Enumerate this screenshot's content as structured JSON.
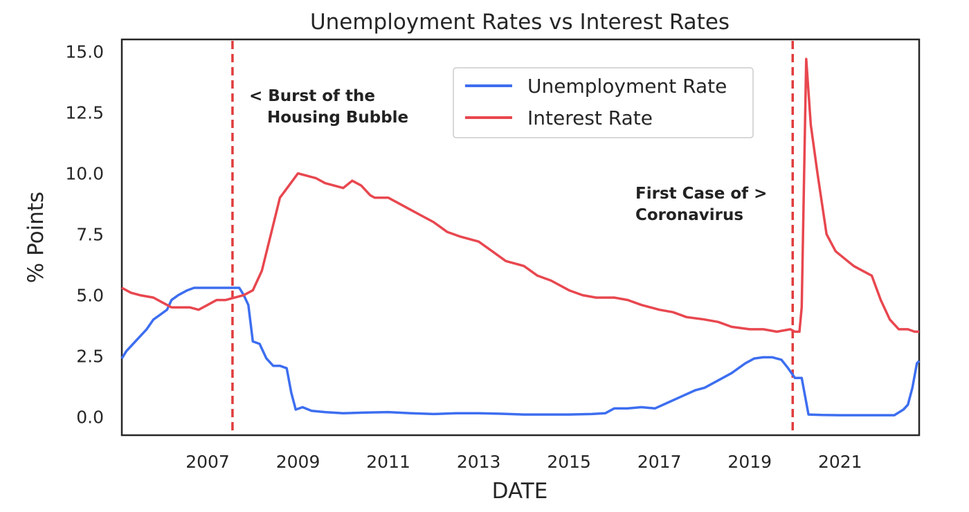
{
  "chart_data": {
    "type": "line",
    "title": "Unemployment Rates vs Interest Rates",
    "xlabel": "DATE",
    "ylabel": "% Points",
    "xlim": [
      2005.1,
      2022.75
    ],
    "ylim": [
      -0.75,
      15.5
    ],
    "xticks": [
      "2007",
      "2009",
      "2011",
      "2013",
      "2015",
      "2017",
      "2019",
      "2021"
    ],
    "yticks": [
      "0.0",
      "2.5",
      "5.0",
      "7.5",
      "10.0",
      "12.5",
      "15.0"
    ],
    "grid": false,
    "legend_position": "top-right",
    "colors": {
      "unemployment": "#3d6ef0",
      "interest": "#e8474f",
      "vline": "#e03c3c"
    },
    "series": [
      {
        "name": "Unemployment Rate",
        "x": [
          2005.1,
          2005.2,
          2005.35,
          2005.5,
          2005.65,
          2005.8,
          2005.95,
          2006.1,
          2006.2,
          2006.35,
          2006.45,
          2006.55,
          2006.7,
          2006.85,
          2007.0,
          2007.2,
          2007.4,
          2007.55,
          2007.7,
          2007.8,
          2007.9,
          2008.0,
          2008.15,
          2008.3,
          2008.45,
          2008.6,
          2008.75,
          2008.85,
          2008.95,
          2009.1,
          2009.3,
          2009.6,
          2010.0,
          2010.5,
          2011.0,
          2011.5,
          2012.0,
          2012.5,
          2013.0,
          2013.5,
          2014.0,
          2014.5,
          2015.0,
          2015.5,
          2015.8,
          2016.0,
          2016.3,
          2016.6,
          2016.9,
          2017.2,
          2017.5,
          2017.8,
          2018.0,
          2018.3,
          2018.6,
          2018.9,
          2019.1,
          2019.3,
          2019.5,
          2019.7,
          2019.85,
          2020.0,
          2020.1,
          2020.15,
          2020.3,
          2020.6,
          2021.0,
          2021.5,
          2022.0,
          2022.2,
          2022.4,
          2022.5,
          2022.6,
          2022.7,
          2022.75
        ],
        "values": [
          2.4,
          2.7,
          3.0,
          3.3,
          3.6,
          4.0,
          4.2,
          4.4,
          4.8,
          5.0,
          5.1,
          5.2,
          5.3,
          5.3,
          5.3,
          5.3,
          5.3,
          5.3,
          5.3,
          5.0,
          4.6,
          3.1,
          3.0,
          2.4,
          2.1,
          2.1,
          2.0,
          1.0,
          0.3,
          0.4,
          0.25,
          0.2,
          0.15,
          0.18,
          0.2,
          0.15,
          0.12,
          0.15,
          0.15,
          0.13,
          0.1,
          0.1,
          0.1,
          0.12,
          0.15,
          0.35,
          0.35,
          0.4,
          0.35,
          0.6,
          0.85,
          1.1,
          1.2,
          1.5,
          1.8,
          2.2,
          2.4,
          2.45,
          2.45,
          2.35,
          2.0,
          1.6,
          1.6,
          1.6,
          0.1,
          0.08,
          0.07,
          0.07,
          0.07,
          0.07,
          0.3,
          0.5,
          1.2,
          2.2,
          2.3
        ]
      },
      {
        "name": "Interest Rate",
        "x": [
          2005.1,
          2005.3,
          2005.5,
          2005.8,
          2006.0,
          2006.2,
          2006.4,
          2006.6,
          2006.8,
          2007.0,
          2007.2,
          2007.4,
          2007.6,
          2007.8,
          2008.0,
          2008.2,
          2008.4,
          2008.6,
          2008.8,
          2009.0,
          2009.2,
          2009.4,
          2009.6,
          2009.8,
          2010.0,
          2010.2,
          2010.4,
          2010.6,
          2010.7,
          2010.8,
          2011.0,
          2011.2,
          2011.5,
          2011.8,
          2012.0,
          2012.3,
          2012.6,
          2013.0,
          2013.3,
          2013.6,
          2014.0,
          2014.3,
          2014.6,
          2015.0,
          2015.3,
          2015.6,
          2016.0,
          2016.3,
          2016.6,
          2017.0,
          2017.3,
          2017.6,
          2018.0,
          2018.3,
          2018.6,
          2019.0,
          2019.3,
          2019.6,
          2019.9,
          2020.0,
          2020.1,
          2020.15,
          2020.25,
          2020.35,
          2020.5,
          2020.7,
          2020.9,
          2021.1,
          2021.3,
          2021.5,
          2021.7,
          2021.9,
          2022.1,
          2022.3,
          2022.5,
          2022.65,
          2022.75
        ],
        "values": [
          5.3,
          5.1,
          5.0,
          4.9,
          4.7,
          4.5,
          4.5,
          4.5,
          4.4,
          4.6,
          4.8,
          4.8,
          4.9,
          5.0,
          5.2,
          6.0,
          7.5,
          9.0,
          9.5,
          10.0,
          9.9,
          9.8,
          9.6,
          9.5,
          9.4,
          9.7,
          9.5,
          9.1,
          9.0,
          9.0,
          9.0,
          8.8,
          8.5,
          8.2,
          8.0,
          7.6,
          7.4,
          7.2,
          6.8,
          6.4,
          6.2,
          5.8,
          5.6,
          5.2,
          5.0,
          4.9,
          4.9,
          4.8,
          4.6,
          4.4,
          4.3,
          4.1,
          4.0,
          3.9,
          3.7,
          3.6,
          3.6,
          3.5,
          3.6,
          3.5,
          3.5,
          4.5,
          14.7,
          12.0,
          10.0,
          7.5,
          6.8,
          6.5,
          6.2,
          6.0,
          5.8,
          4.8,
          4.0,
          3.6,
          3.6,
          3.5,
          3.5
        ]
      }
    ],
    "vlines": [
      {
        "x": 2007.55
      },
      {
        "x": 2019.95
      }
    ],
    "annotations": [
      {
        "line1": "< Burst of the",
        "line2": "Housing Bubble"
      },
      {
        "line1": "First Case of >",
        "line2": "Coronavirus"
      }
    ]
  }
}
